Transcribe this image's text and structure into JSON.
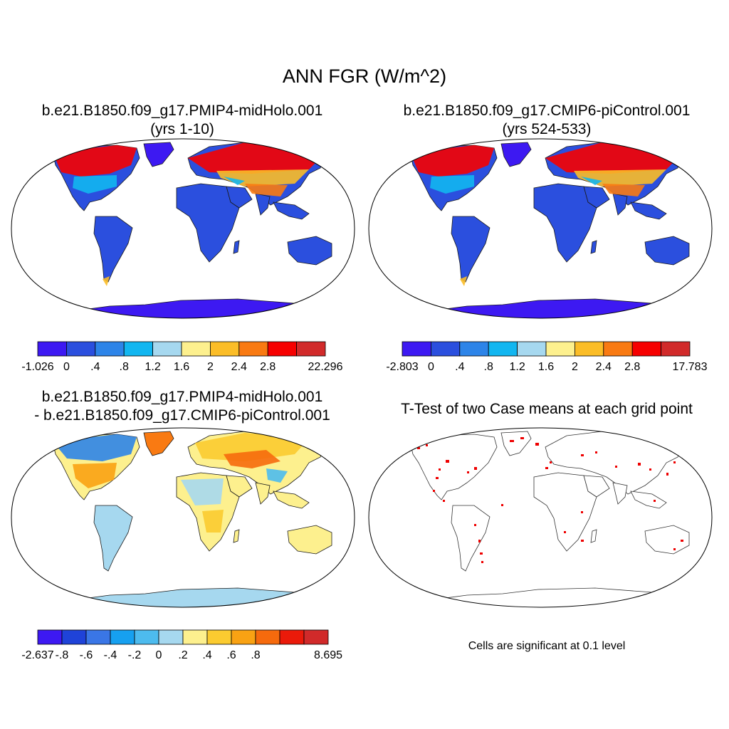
{
  "title": "ANN FGR (W/m^2)",
  "panels": [
    {
      "case": "b.e21.B1850.f09_g17.PMIP4-midHolo.001",
      "years": "(yrs 1-10)",
      "field": "absolute"
    },
    {
      "case": "b.e21.B1850.f09_g17.CMIP6-piControl.001",
      "years": "(yrs 524-533)",
      "field": "absolute"
    },
    {
      "title_line1": "b.e21.B1850.f09_g17.PMIP4-midHolo.001",
      "title_line2": "- b.e21.B1850.f09_g17.CMIP6-piControl.001",
      "field": "difference"
    },
    {
      "title": "T-Test of two Case means at each grid point",
      "note": "Cells are significant at 0.1 level",
      "field": "significance"
    }
  ],
  "chart_data": [
    {
      "type": "heatmap",
      "name": "midHolo mean",
      "colorbar": {
        "colors": [
          "#3d19f2",
          "#2b4fde",
          "#2d84e8",
          "#12b6f0",
          "#a6d8ef",
          "#fdf08e",
          "#fbbd27",
          "#f97a12",
          "#f60000",
          "#d12a2a"
        ],
        "labels": [
          "-1.026",
          "0",
          ".4",
          ".8",
          "1.2",
          "1.6",
          "2",
          "2.4",
          "2.8",
          "22.296"
        ]
      }
    },
    {
      "type": "heatmap",
      "name": "piControl mean",
      "colorbar": {
        "colors": [
          "#3d19f2",
          "#2b4fde",
          "#2d84e8",
          "#12b6f0",
          "#a6d8ef",
          "#fdf08e",
          "#fbbd27",
          "#f97a12",
          "#f60000",
          "#d12a2a"
        ],
        "labels": [
          "-2.803",
          "0",
          ".4",
          ".8",
          "1.2",
          "1.6",
          "2",
          "2.4",
          "2.8",
          "17.783"
        ]
      }
    },
    {
      "type": "heatmap",
      "name": "difference",
      "colorbar": {
        "colors": [
          "#3d19f2",
          "#1f43d8",
          "#3a76e6",
          "#16a0f0",
          "#4dbbee",
          "#a6d8ef",
          "#fdf08e",
          "#fbcb30",
          "#f9a213",
          "#f66a0d",
          "#ea1a0a",
          "#d12a2a"
        ],
        "labels": [
          "-2.637",
          "-.8",
          "-.6",
          "-.4",
          "-.2",
          "0",
          ".2",
          ".4",
          ".6",
          ".8",
          "8.695"
        ]
      }
    }
  ]
}
